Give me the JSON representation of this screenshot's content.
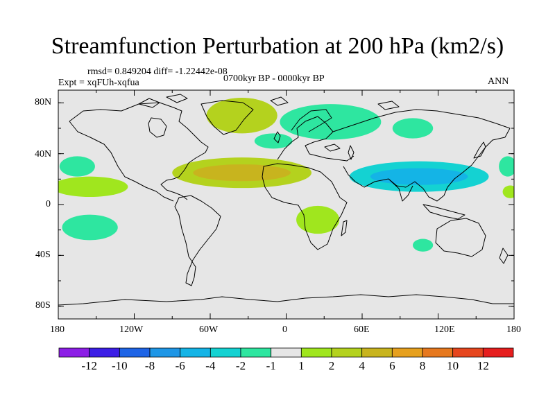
{
  "title": "Streamfunction Perturbation at 200 hPa (km2/s)",
  "stats_line": "rmsd= 0.849204  diff= -1.22442e-08",
  "experiment_label": "Expt = xqFUh-xqfua",
  "period_label": "0700kyr BP - 0000kyr BP",
  "season_label": "ANN",
  "y_axis_labels": [
    "80N",
    "40N",
    "0",
    "40S",
    "80S"
  ],
  "x_axis_labels": [
    "180",
    "120W",
    "60W",
    "0",
    "60E",
    "120E",
    "180"
  ],
  "colors": {
    "background_land_ocean": "#e6e6e6",
    "neg_minus2_minus1": "#2ee6a0",
    "neg_minus4_minus2": "#14d2d2",
    "pos_1_2": "#a0e61e",
    "pos_2_4": "#b4d21e",
    "pos_4_6": "#c8b41e"
  },
  "colorbar": {
    "colors": [
      "#8c1ee6",
      "#3c1ee6",
      "#1e64e6",
      "#1e96e6",
      "#14b4e6",
      "#14d2d2",
      "#2ee6a0",
      "#e6e6e6",
      "#a0e61e",
      "#b4d21e",
      "#c8b41e",
      "#e6a01e",
      "#e6781e",
      "#e6461e",
      "#e61e1e"
    ],
    "labels": [
      "-12",
      "-10",
      "-8",
      "-6",
      "-4",
      "-2",
      "-1",
      "1",
      "2",
      "4",
      "6",
      "8",
      "10",
      "12"
    ]
  },
  "chart_data": {
    "type": "contour-map",
    "variable": "Streamfunction Perturbation at 200 hPa",
    "units": "km2/s",
    "xlim": [
      -180,
      180
    ],
    "ylim": [
      -90,
      90
    ],
    "contour_levels": [
      -12,
      -10,
      -8,
      -6,
      -4,
      -2,
      -1,
      1,
      2,
      4,
      6,
      8,
      10,
      12
    ],
    "anomaly_regions": [
      {
        "lon": -35,
        "lat": 70,
        "value": 2.5,
        "rx_deg": 28,
        "ry_deg": 14
      },
      {
        "lon": -35,
        "lat": 25,
        "value": 3,
        "rx_deg": 55,
        "ry_deg": 12
      },
      {
        "lon": 35,
        "lat": 65,
        "value": -1.5,
        "rx_deg": 40,
        "ry_deg": 14
      },
      {
        "lon": -10,
        "lat": 50,
        "value": -1.3,
        "rx_deg": 15,
        "ry_deg": 6
      },
      {
        "lon": 100,
        "lat": 60,
        "value": -1.3,
        "rx_deg": 16,
        "ry_deg": 8
      },
      {
        "lon": 105,
        "lat": 22,
        "value": -2.5,
        "rx_deg": 55,
        "ry_deg": 12
      },
      {
        "lon": -165,
        "lat": 30,
        "value": -1.5,
        "rx_deg": 14,
        "ry_deg": 8
      },
      {
        "lon": -155,
        "lat": 14,
        "value": 1.5,
        "rx_deg": 30,
        "ry_deg": 8
      },
      {
        "lon": -155,
        "lat": -18,
        "value": -1.5,
        "rx_deg": 22,
        "ry_deg": 10
      },
      {
        "lon": 25,
        "lat": -12,
        "value": 1.5,
        "rx_deg": 17,
        "ry_deg": 11
      },
      {
        "lon": 108,
        "lat": -32,
        "value": -1.5,
        "rx_deg": 8,
        "ry_deg": 5
      },
      {
        "lon": 175,
        "lat": 30,
        "value": -1.3,
        "rx_deg": 7,
        "ry_deg": 8
      },
      {
        "lon": 177,
        "lat": 10,
        "value": 1.3,
        "rx_deg": 6,
        "ry_deg": 5
      }
    ]
  }
}
